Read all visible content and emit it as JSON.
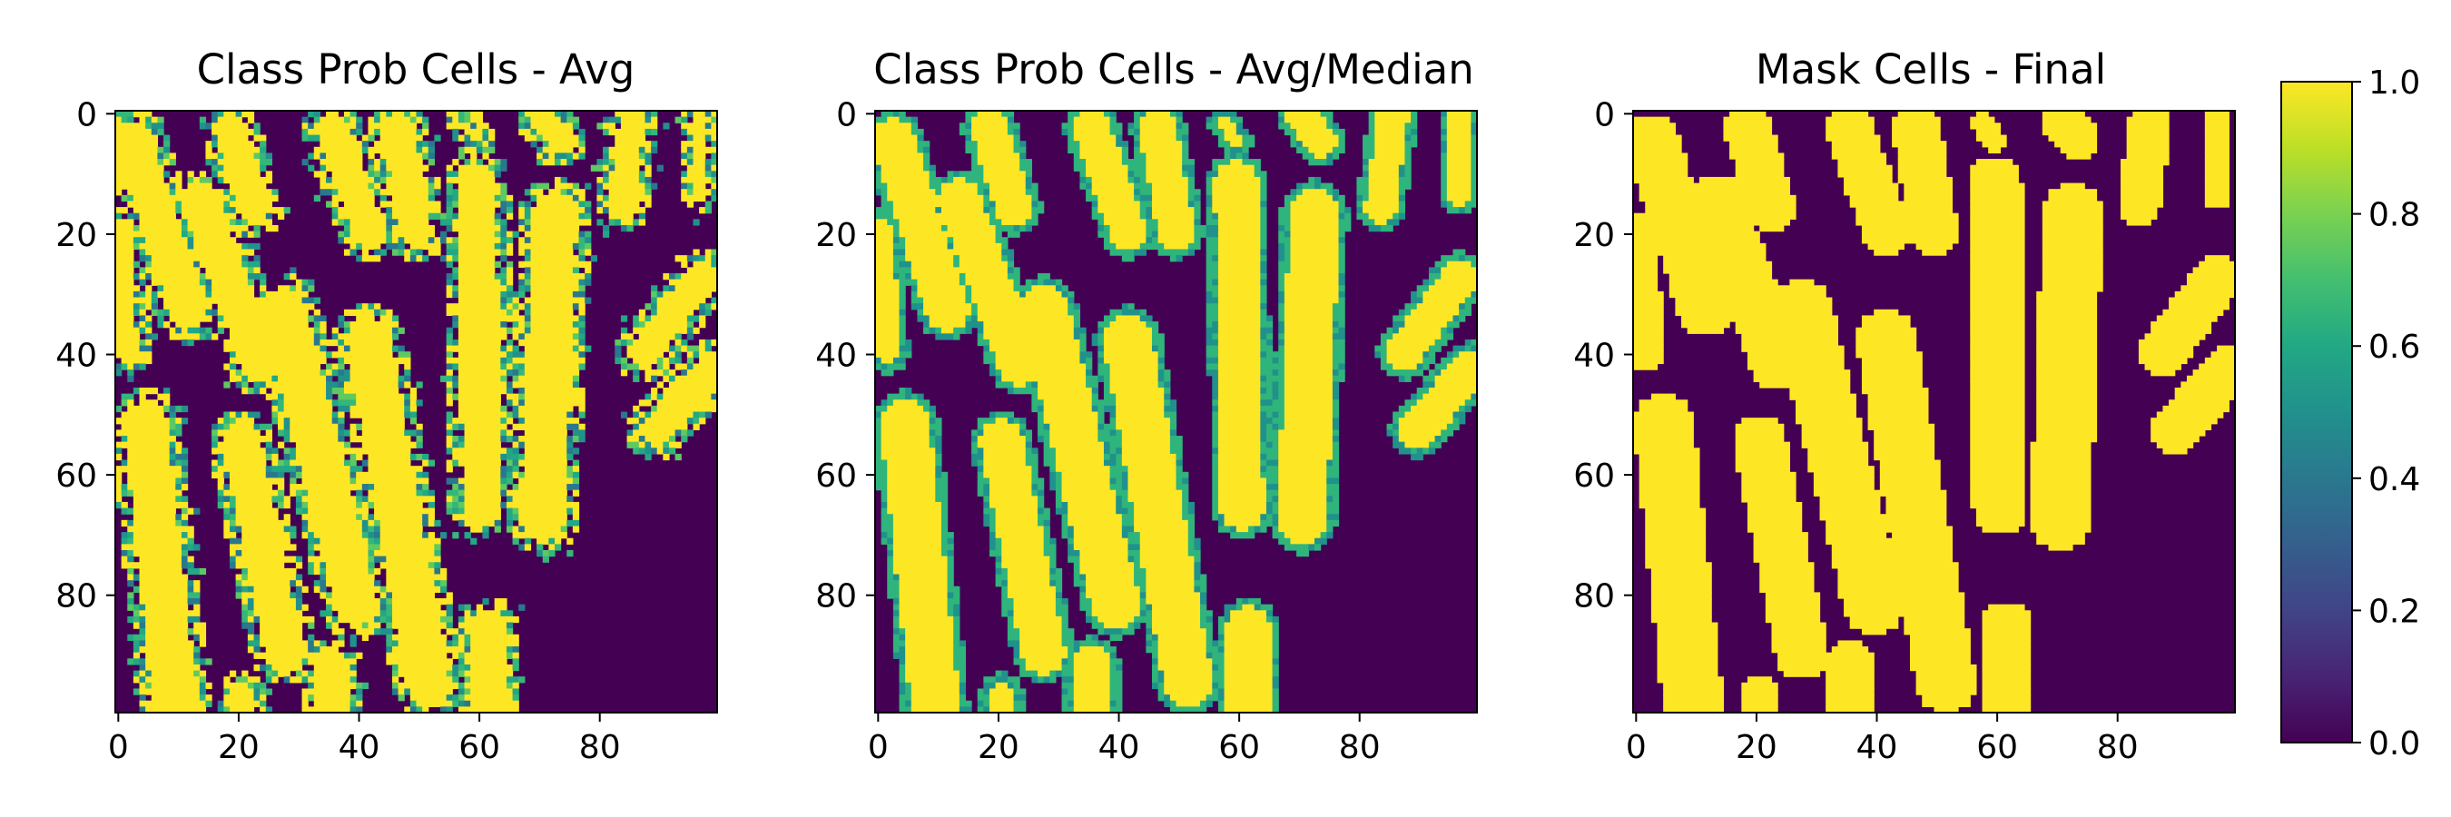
{
  "chart_data": {
    "type": "heatmap",
    "colormap": "viridis",
    "grid": false,
    "panels": [
      {
        "title": "Class Prob Cells - Avg",
        "grid_shape": [
          100,
          100
        ],
        "x_ticks": [
          "0",
          "20",
          "40",
          "60",
          "80"
        ],
        "y_ticks": [
          "0",
          "20",
          "40",
          "60",
          "80"
        ],
        "value_range": [
          0,
          1
        ],
        "values": "binary mask of rod-shaped bacterial cells (~1.0 inside cells, ~0.0 background) with noisy intermediate values (0.4-0.8) along cell borders"
      },
      {
        "title": "Class Prob Cells - Avg/Median",
        "grid_shape": [
          100,
          100
        ],
        "x_ticks": [
          "0",
          "20",
          "40",
          "60",
          "80"
        ],
        "y_ticks": [
          "0",
          "20",
          "40",
          "60",
          "80"
        ],
        "value_range": [
          0,
          1
        ],
        "values": "same cells as panel 1 with smoothed borders (thin ~0.6 rim around each cell)"
      },
      {
        "title": "Mask Cells - Final",
        "grid_shape": [
          100,
          100
        ],
        "x_ticks": [
          "0",
          "20",
          "40",
          "60",
          "80"
        ],
        "y_ticks": [
          "0",
          "20",
          "40",
          "60",
          "80"
        ],
        "value_range": [
          0,
          1
        ],
        "values": "binary final mask: 1.0 inside cells, 0.0 background"
      }
    ],
    "colorbar": {
      "ticks": [
        "0.0",
        "0.2",
        "0.4",
        "0.6",
        "0.8",
        "1.0"
      ],
      "range": [
        0,
        1
      ]
    },
    "cells": [
      {
        "x1": 3,
        "y1": 5,
        "x2": 12,
        "y2": 33,
        "w": 9
      },
      {
        "x1": 19,
        "y1": 3,
        "x2": 23,
        "y2": 16,
        "w": 8
      },
      {
        "x1": 36,
        "y1": 3,
        "x2": 42,
        "y2": 20,
        "w": 8
      },
      {
        "x1": 47,
        "y1": 3,
        "x2": 50,
        "y2": 20,
        "w": 8
      },
      {
        "x1": 58,
        "y1": 2,
        "x2": 60,
        "y2": 5,
        "w": 4
      },
      {
        "x1": 71,
        "y1": 1,
        "x2": 74,
        "y2": 5,
        "w": 7
      },
      {
        "x1": 86,
        "y1": 1,
        "x2": 84,
        "y2": 16,
        "w": 7
      },
      {
        "x1": 97,
        "y1": 1,
        "x2": 97,
        "y2": 14,
        "w": 5
      },
      {
        "x1": 1,
        "y1": 20,
        "x2": 2,
        "y2": 40,
        "w": 6
      },
      {
        "x1": 14,
        "y1": 15,
        "x2": 24,
        "y2": 42,
        "w": 9
      },
      {
        "x1": 28,
        "y1": 33,
        "x2": 40,
        "y2": 82,
        "w": 10
      },
      {
        "x1": 42,
        "y1": 38,
        "x2": 52,
        "y2": 95,
        "w": 10
      },
      {
        "x1": 21,
        "y1": 55,
        "x2": 28,
        "y2": 90,
        "w": 9
      },
      {
        "x1": 5,
        "y1": 52,
        "x2": 10,
        "y2": 99,
        "w": 10
      },
      {
        "x1": 60,
        "y1": 12,
        "x2": 61,
        "y2": 66,
        "w": 9
      },
      {
        "x1": 73,
        "y1": 17,
        "x2": 71,
        "y2": 68,
        "w": 10
      },
      {
        "x1": 88,
        "y1": 40,
        "x2": 97,
        "y2": 28,
        "w": 8
      },
      {
        "x1": 90,
        "y1": 53,
        "x2": 99,
        "y2": 43,
        "w": 8
      },
      {
        "x1": 62,
        "y1": 86,
        "x2": 62,
        "y2": 99,
        "w": 9
      },
      {
        "x1": 36,
        "y1": 92,
        "x2": 36,
        "y2": 99,
        "w": 8
      },
      {
        "x1": 21,
        "y1": 97,
        "x2": 21,
        "y2": 99,
        "w": 6
      }
    ]
  }
}
